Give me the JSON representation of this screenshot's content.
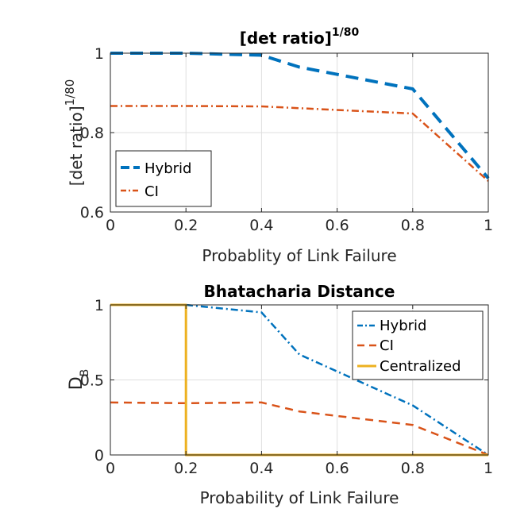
{
  "chart_data": [
    {
      "type": "line",
      "title": "[det ratio]",
      "title_sup": "1/80",
      "xlabel": "Probablity of Link Failure",
      "ylabel": "[det ratio]",
      "ylabel_sup": "1/80",
      "xlim": [
        0,
        1
      ],
      "ylim": [
        0.6,
        1
      ],
      "xticks": [
        "0",
        "0.2",
        "0.4",
        "0.6",
        "0.8",
        "1"
      ],
      "yticks": [
        "0.6",
        "0.8",
        "1"
      ],
      "grid": true,
      "legend_position": "bottom-left",
      "series": [
        {
          "name": "Hybrid",
          "color": "#0072BD",
          "style": "dashed-thick",
          "x": [
            0,
            0.2,
            0.4,
            0.5,
            0.8,
            1
          ],
          "y": [
            1.0,
            1.0,
            0.995,
            0.965,
            0.91,
            0.685
          ]
        },
        {
          "name": "CI",
          "color": "#D95319",
          "style": "dash-dot",
          "x": [
            0,
            0.2,
            0.4,
            0.8,
            1
          ],
          "y": [
            0.867,
            0.867,
            0.866,
            0.848,
            0.678
          ]
        }
      ]
    },
    {
      "type": "line",
      "title": "Bhatacharia Distance",
      "xlabel": "Probability of Link Failure",
      "ylabel": "D",
      "ylabel_sub": "B",
      "xlim": [
        0,
        1
      ],
      "ylim": [
        0,
        1
      ],
      "xticks": [
        "0",
        "0.2",
        "0.4",
        "0.6",
        "0.8",
        "1"
      ],
      "yticks": [
        "0",
        "0.5",
        "1"
      ],
      "grid": true,
      "legend_position": "top-right",
      "series": [
        {
          "name": "Hybrid",
          "color": "#0072BD",
          "style": "dash-dot",
          "x": [
            0,
            0.2,
            0.4,
            0.5,
            0.8,
            1
          ],
          "y": [
            1.0,
            1.0,
            0.95,
            0.67,
            0.33,
            0.0
          ]
        },
        {
          "name": "CI",
          "color": "#D95319",
          "style": "dashed",
          "x": [
            0,
            0.2,
            0.4,
            0.5,
            0.8,
            1
          ],
          "y": [
            0.35,
            0.345,
            0.35,
            0.29,
            0.2,
            0.0
          ]
        },
        {
          "name": "Centralized",
          "color": "#EDB120",
          "style": "solid",
          "x": [
            0,
            0.2,
            0.2,
            1
          ],
          "y": [
            1.0,
            1.0,
            0.0,
            0.0
          ]
        }
      ]
    }
  ]
}
